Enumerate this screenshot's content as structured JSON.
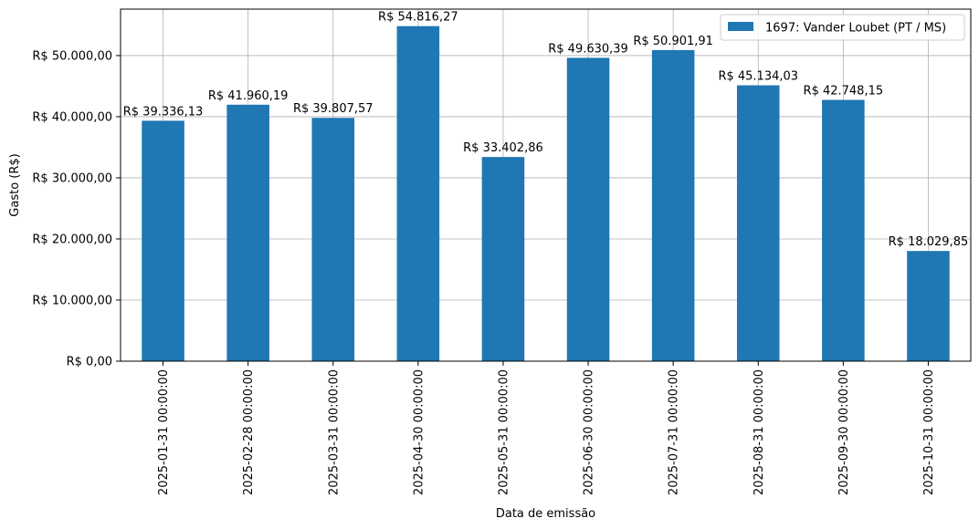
{
  "chart_data": {
    "type": "bar",
    "title": "",
    "xlabel": "Data de emissão",
    "ylabel": "Gasto (R$)",
    "ylim": [
      0,
      57600
    ],
    "yticks": [
      0,
      10000,
      20000,
      30000,
      40000,
      50000
    ],
    "ytick_labels": [
      "R$ 0,00",
      "R$ 10.000,00",
      "R$ 20.000,00",
      "R$ 30.000,00",
      "R$ 40.000,00",
      "R$ 50.000,00"
    ],
    "grid": true,
    "legend_position": "top-right",
    "bar_color": "#1f77b4",
    "categories": [
      "2025-01-31 00:00:00",
      "2025-02-28 00:00:00",
      "2025-03-31 00:00:00",
      "2025-04-30 00:00:00",
      "2025-05-31 00:00:00",
      "2025-06-30 00:00:00",
      "2025-07-31 00:00:00",
      "2025-08-31 00:00:00",
      "2025-09-30 00:00:00",
      "2025-10-31 00:00:00"
    ],
    "series": [
      {
        "name": "1697: Vander Loubet (PT / MS)",
        "values": [
          39336.13,
          41960.19,
          39807.57,
          54816.27,
          33402.86,
          49630.39,
          50901.91,
          45134.03,
          42748.15,
          18029.85
        ],
        "labels": [
          "R$ 39.336,13",
          "R$ 41.960,19",
          "R$ 39.807,57",
          "R$ 54.816,27",
          "R$ 33.402,86",
          "R$ 49.630,39",
          "R$ 50.901,91",
          "R$ 45.134,03",
          "R$ 42.748,15",
          "R$ 18.029,85"
        ]
      }
    ]
  }
}
